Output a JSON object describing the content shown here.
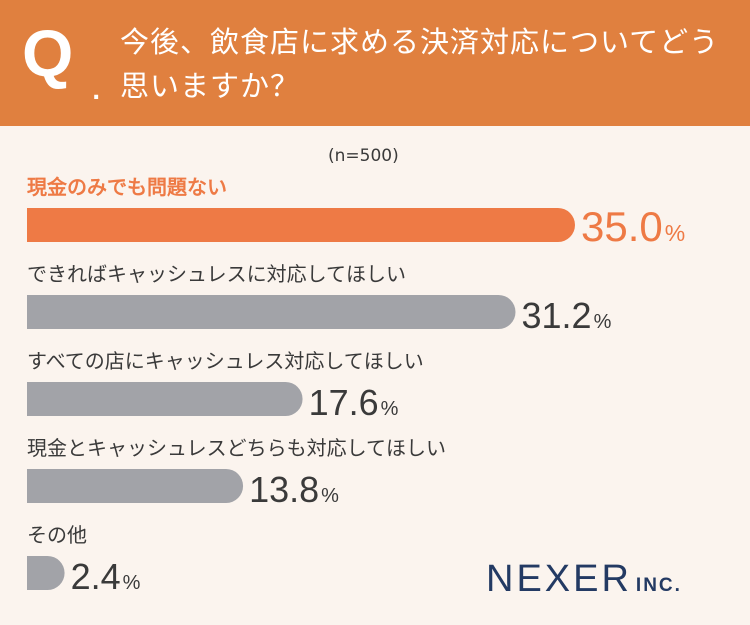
{
  "question": {
    "mark": "Q",
    "dot": ".",
    "text": "今後、飲食店に求める決済対応についてどう思いますか？"
  },
  "sample_note": "(n=500)",
  "brand": {
    "name": "NEXER",
    "suffix": "INC."
  },
  "colors": {
    "header": "#e0803f",
    "highlight": "#ee7a45",
    "bar_gray": "#a2a3a8",
    "text_dark": "#3a3a3a",
    "brand": "#233a63"
  },
  "chart_data": {
    "type": "bar",
    "orientation": "horizontal",
    "categories": [
      "現金のみでも問題ない",
      "できればキャッシュレスに対応してほしい",
      "すべての店にキャッシュレス対応してほしい",
      "現金とキャッシュレスどちらも対応してほしい",
      "その他"
    ],
    "values": [
      35.0,
      31.2,
      17.6,
      13.8,
      2.4
    ],
    "value_labels": [
      "35.0",
      "31.2",
      "17.6",
      "13.8",
      "2.4"
    ],
    "unit": "%",
    "highlight_index": 0,
    "xlim": [
      0,
      35.0
    ]
  }
}
